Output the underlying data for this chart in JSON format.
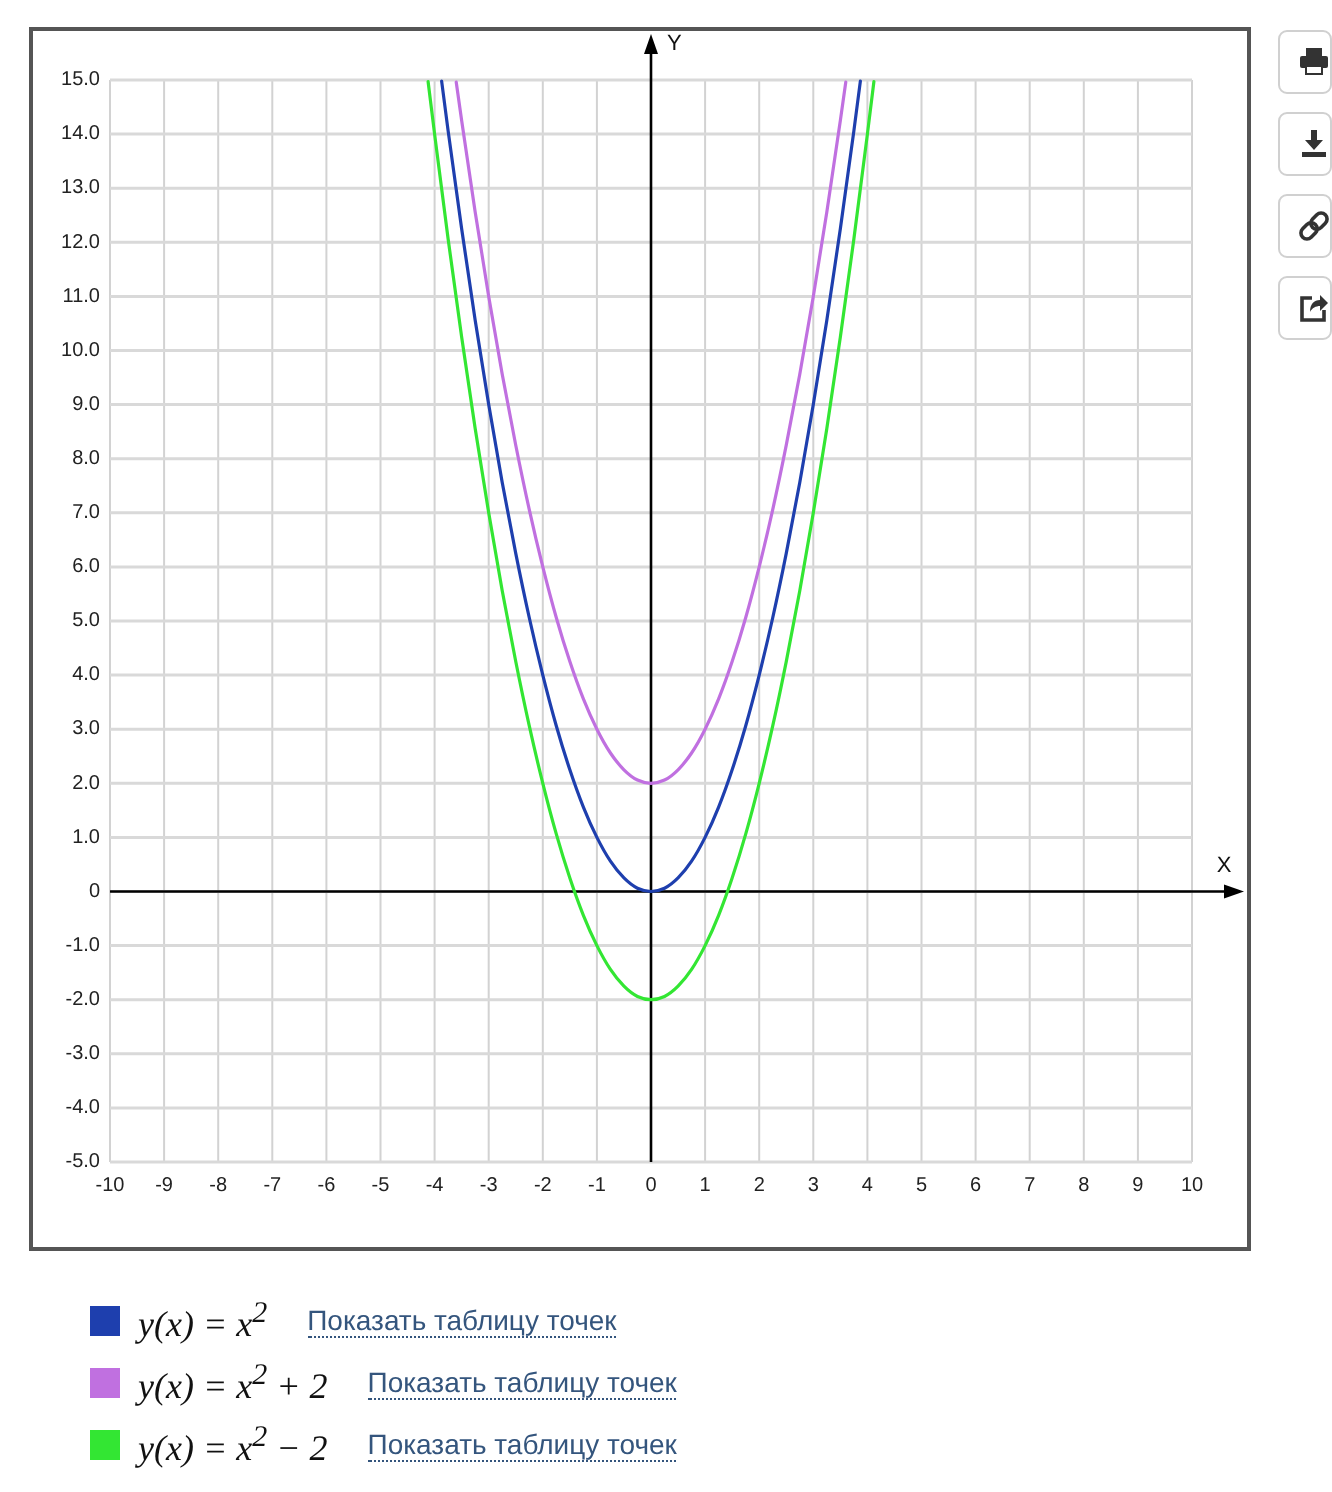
{
  "chart_data": {
    "type": "line",
    "xlabel": "X",
    "ylabel": "Y",
    "xlim": [
      -10,
      10
    ],
    "ylim": [
      -5,
      15
    ],
    "xticks": [
      -10,
      -9,
      -8,
      -7,
      -6,
      -5,
      -4,
      -3,
      -2,
      -1,
      0,
      1,
      2,
      3,
      4,
      5,
      6,
      7,
      8,
      9,
      10
    ],
    "yticks": [
      {
        "value": 15,
        "label": "15.0"
      },
      {
        "value": 14,
        "label": "14.0"
      },
      {
        "value": 13,
        "label": "13.0"
      },
      {
        "value": 12,
        "label": "12.0"
      },
      {
        "value": 11,
        "label": "11.0"
      },
      {
        "value": 10,
        "label": "10.0"
      },
      {
        "value": 9,
        "label": "9.0"
      },
      {
        "value": 8,
        "label": "8.0"
      },
      {
        "value": 7,
        "label": "7.0"
      },
      {
        "value": 6,
        "label": "6.0"
      },
      {
        "value": 5,
        "label": "5.0"
      },
      {
        "value": 4,
        "label": "4.0"
      },
      {
        "value": 3,
        "label": "3.0"
      },
      {
        "value": 2,
        "label": "2.0"
      },
      {
        "value": 1,
        "label": "1.0"
      },
      0,
      {
        "value": -1,
        "label": "-1.0"
      },
      {
        "value": -2,
        "label": "-2.0"
      },
      {
        "value": -3,
        "label": "-3.0"
      },
      {
        "value": -4,
        "label": "-4.0"
      },
      {
        "value": -5,
        "label": "-5.0"
      }
    ],
    "grid": true,
    "legend": "bottom",
    "series": [
      {
        "name": "y(x) = x$^{2}$",
        "color": "#1e3fae",
        "x": [
          -3.87,
          -3.75,
          -3.5,
          -3.25,
          -3,
          -2.75,
          -2.5,
          -2.25,
          -2,
          -1.75,
          -1.5,
          -1.25,
          -1,
          -0.75,
          -0.5,
          -0.25,
          0,
          0.25,
          0.5,
          0.75,
          1,
          1.25,
          1.5,
          1.75,
          2,
          2.25,
          2.5,
          2.75,
          3,
          3.25,
          3.5,
          3.75,
          3.87
        ],
        "values": [
          14.98,
          14.06,
          12.25,
          10.56,
          9,
          7.56,
          6.25,
          5.06,
          4,
          3.06,
          2.25,
          1.56,
          1,
          0.56,
          0.25,
          0.06,
          0,
          0.06,
          0.25,
          0.56,
          1,
          1.56,
          2.25,
          3.06,
          4,
          5.06,
          6.25,
          7.56,
          9,
          10.56,
          12.25,
          14.06,
          14.98
        ]
      },
      {
        "name": "y(x) = x$^{2}$ + 2",
        "color": "#c070e0",
        "x": [
          -3.6,
          -3.5,
          -3.25,
          -3,
          -2.75,
          -2.5,
          -2.25,
          -2,
          -1.75,
          -1.5,
          -1.25,
          -1,
          -0.75,
          -0.5,
          -0.25,
          0,
          0.25,
          0.5,
          0.75,
          1,
          1.25,
          1.5,
          1.75,
          2,
          2.25,
          2.5,
          2.75,
          3,
          3.25,
          3.5,
          3.6
        ],
        "values": [
          14.96,
          14.25,
          12.56,
          11,
          9.56,
          8.25,
          7.06,
          6,
          5.06,
          4.25,
          3.56,
          3,
          2.56,
          2.25,
          2.06,
          2,
          2.06,
          2.25,
          2.56,
          3,
          3.56,
          4.25,
          5.06,
          6,
          7.06,
          8.25,
          9.56,
          11,
          12.56,
          14.25,
          14.96
        ]
      },
      {
        "name": "y(x) = x$^{2}$ − 2",
        "color": "#33e633",
        "x": [
          -4.12,
          -4,
          -3.75,
          -3.5,
          -3.25,
          -3,
          -2.75,
          -2.5,
          -2.25,
          -2,
          -1.75,
          -1.5,
          -1.25,
          -1,
          -0.75,
          -0.5,
          -0.25,
          0,
          0.25,
          0.5,
          0.75,
          1,
          1.25,
          1.5,
          1.75,
          2,
          2.25,
          2.5,
          2.75,
          3,
          3.25,
          3.5,
          3.75,
          4,
          4.12
        ],
        "values": [
          14.97,
          14,
          12.06,
          10.25,
          8.56,
          7,
          5.56,
          4.25,
          3.06,
          2,
          1.06,
          0.25,
          -0.44,
          -1,
          -1.44,
          -1.75,
          -1.94,
          -2,
          -1.94,
          -1.75,
          -1.44,
          -1,
          -0.44,
          0.25,
          1.06,
          2,
          3.06,
          4.25,
          5.56,
          7,
          8.56,
          10.25,
          12.06,
          14,
          14.97
        ]
      }
    ],
    "annotations": [
      "Показать таблицу точек",
      "Показать таблицу точек",
      "Показать таблицу точек"
    ]
  }
}
